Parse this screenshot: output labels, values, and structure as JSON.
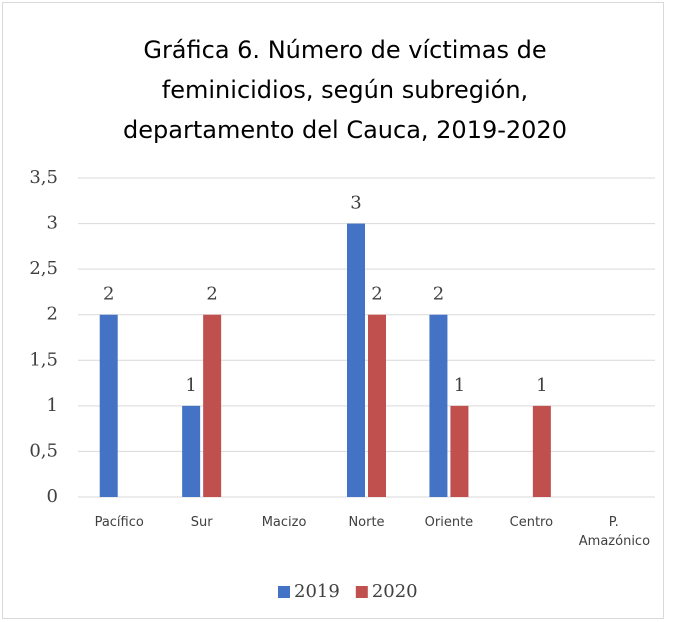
{
  "chart_data": {
    "type": "bar",
    "title": "Gráfica 6. Número de víctimas de feminicidios, según subregión, departamento del Cauca, 2019-2020",
    "categories": [
      "Pacífico",
      "Sur",
      "Macizo",
      "Norte",
      "Oriente",
      "Centro",
      "P. Amazónico"
    ],
    "series": [
      {
        "name": "2019",
        "color": "#4472c4",
        "values": [
          2,
          1,
          null,
          3,
          2,
          null,
          null
        ]
      },
      {
        "name": "2020",
        "color": "#c0504d",
        "values": [
          null,
          2,
          null,
          2,
          1,
          1,
          null
        ]
      }
    ],
    "ylim": [
      0,
      3.5
    ],
    "yticks": [
      0,
      {
        "value": 0.5,
        "label": "0,5"
      },
      1,
      {
        "value": 1.5,
        "label": "1,5"
      },
      2,
      {
        "value": 2.5,
        "label": "2,5"
      },
      3,
      {
        "value": 3.5,
        "label": "3,5"
      }
    ],
    "grid": true,
    "legend": "bottom"
  }
}
